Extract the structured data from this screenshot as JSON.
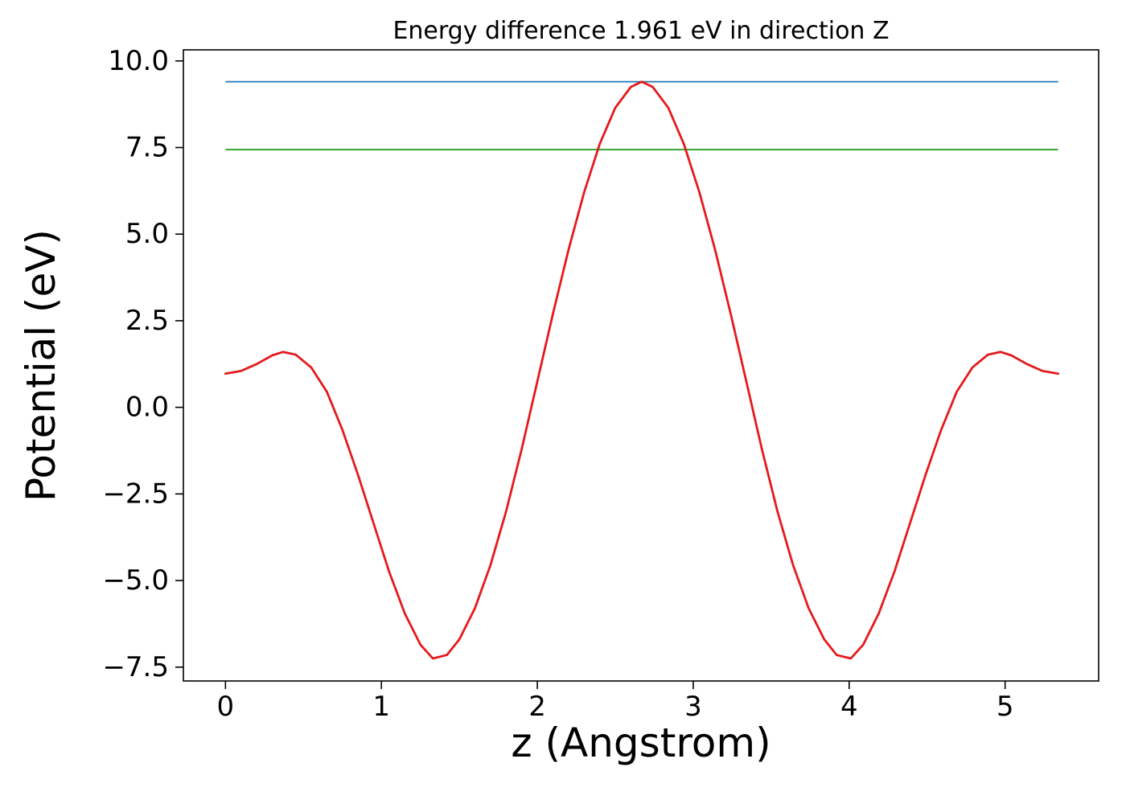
{
  "figure": {
    "background": "#ffffff",
    "text_color": "#000000",
    "axes_color": "#000000"
  },
  "chart_data": {
    "type": "line",
    "title": "Energy difference 1.961 eV in direction Z",
    "xlabel": "z (Angstrom)",
    "ylabel": "Potential (eV)",
    "energy_difference_eV": 1.961,
    "direction": "Z",
    "xlim": [
      -0.27,
      5.6
    ],
    "ylim": [
      -7.9,
      10.32
    ],
    "grid": false,
    "legend": "none",
    "xticks": [
      {
        "value": 0,
        "label": "0"
      },
      {
        "value": 1,
        "label": "1"
      },
      {
        "value": 2,
        "label": "2"
      },
      {
        "value": 3,
        "label": "3"
      },
      {
        "value": 4,
        "label": "4"
      },
      {
        "value": 5,
        "label": "5"
      }
    ],
    "yticks": [
      {
        "value": -7.5,
        "label": "−7.5"
      },
      {
        "value": -5.0,
        "label": "−5.0"
      },
      {
        "value": -2.5,
        "label": "−2.5"
      },
      {
        "value": 0.0,
        "label": "0.0"
      },
      {
        "value": 2.5,
        "label": "2.5"
      },
      {
        "value": 5.0,
        "label": "5.0"
      },
      {
        "value": 7.5,
        "label": "7.5"
      },
      {
        "value": 10.0,
        "label": "10.0"
      }
    ],
    "hlines": [
      {
        "name": "vacuum-level-line",
        "y": 9.401,
        "x_start": 0.0,
        "x_end": 5.34,
        "color": "#1f77b4",
        "width": 1.8
      },
      {
        "name": "reference-level-line",
        "y": 7.44,
        "x_start": 0.0,
        "x_end": 5.34,
        "color": "#2ca02c",
        "width": 1.8
      }
    ],
    "series": [
      {
        "name": "planar-averaged-potential",
        "color": "#e41a1c",
        "width": 2.8,
        "x": [
          0.0,
          0.1,
          0.2,
          0.3,
          0.37,
          0.45,
          0.55,
          0.65,
          0.75,
          0.85,
          0.95,
          1.05,
          1.15,
          1.25,
          1.33,
          1.42,
          1.5,
          1.6,
          1.7,
          1.8,
          1.9,
          2.0,
          2.1,
          2.2,
          2.3,
          2.4,
          2.5,
          2.6,
          2.67,
          2.74,
          2.84,
          2.94,
          3.04,
          3.14,
          3.24,
          3.34,
          3.44,
          3.54,
          3.64,
          3.74,
          3.84,
          3.92,
          4.01,
          4.09,
          4.19,
          4.29,
          4.39,
          4.49,
          4.59,
          4.69,
          4.79,
          4.89,
          4.97,
          5.04,
          5.14,
          5.24,
          5.34
        ],
        "y": [
          0.97,
          1.05,
          1.25,
          1.5,
          1.6,
          1.52,
          1.15,
          0.45,
          -0.65,
          -1.95,
          -3.35,
          -4.75,
          -5.95,
          -6.85,
          -7.25,
          -7.15,
          -6.7,
          -5.8,
          -4.55,
          -3.0,
          -1.2,
          0.75,
          2.7,
          4.55,
          6.2,
          7.6,
          8.65,
          9.25,
          9.4,
          9.25,
          8.65,
          7.6,
          6.2,
          4.55,
          2.7,
          0.75,
          -1.2,
          -3.0,
          -4.55,
          -5.8,
          -6.7,
          -7.15,
          -7.25,
          -6.85,
          -5.95,
          -4.75,
          -3.35,
          -1.95,
          -0.65,
          0.45,
          1.15,
          1.52,
          1.6,
          1.5,
          1.25,
          1.05,
          0.97
        ]
      }
    ]
  }
}
